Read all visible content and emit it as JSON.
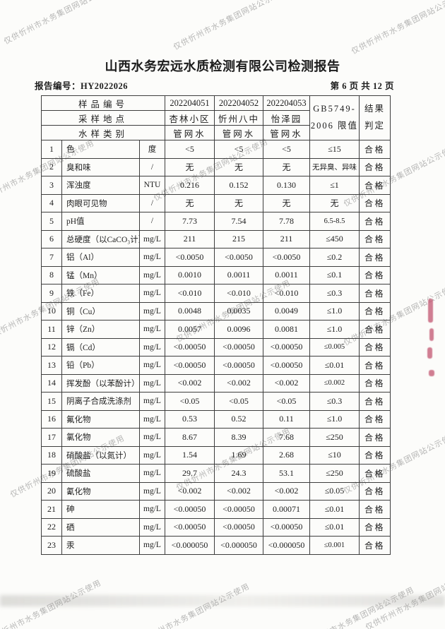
{
  "header": {
    "title": "山西水务宏远水质检测有限公司检测报告",
    "report_label": "报告编号：",
    "report_no": "HY2022026",
    "page_info": "第 6 页 共 12 页"
  },
  "table": {
    "header": {
      "sample_id_label": "样品编号",
      "location_label": "采样地点",
      "type_label": "水样类别",
      "sample_ids": [
        "202204051",
        "202204052",
        "202204053"
      ],
      "locations": [
        "杏林小区",
        "忻州八中",
        "怡泽园"
      ],
      "types": [
        "管网水",
        "管网水",
        "管网水"
      ],
      "limit_line1": "GB5749-",
      "limit_line2": "2006 限值",
      "result_line1": "结果",
      "result_line2": "判定"
    },
    "rows": [
      {
        "no": "1",
        "param": "色",
        "unit": "度",
        "values": [
          "<5",
          "<5",
          "<5"
        ],
        "limit": "≤15",
        "result": "合格"
      },
      {
        "no": "2",
        "param": "臭和味",
        "unit": "/",
        "values": [
          "无",
          "无",
          "无"
        ],
        "limit": "无异臭、异味",
        "result": "合格"
      },
      {
        "no": "3",
        "param": "浑浊度",
        "unit": "NTU",
        "values": [
          "0.216",
          "0.152",
          "0.130"
        ],
        "limit": "≤1",
        "result": "合格"
      },
      {
        "no": "4",
        "param": "肉眼可见物",
        "unit": "/",
        "values": [
          "无",
          "无",
          "无"
        ],
        "limit": "无",
        "result": "合格"
      },
      {
        "no": "5",
        "param": "pH值",
        "unit": "/",
        "values": [
          "7.73",
          "7.54",
          "7.78"
        ],
        "limit": "6.5-8.5",
        "result": "合格"
      },
      {
        "no": "6",
        "param": "总硬度（以CaCO₃计）",
        "unit": "mg/L",
        "values": [
          "211",
          "215",
          "211"
        ],
        "limit": "≤450",
        "result": "合格"
      },
      {
        "no": "7",
        "param": "铝（Al）",
        "unit": "mg/L",
        "values": [
          "<0.0050",
          "<0.0050",
          "<0.0050"
        ],
        "limit": "≤0.2",
        "result": "合格"
      },
      {
        "no": "8",
        "param": "锰（Mn）",
        "unit": "mg/L",
        "values": [
          "0.0010",
          "0.0011",
          "0.0011"
        ],
        "limit": "≤0.1",
        "result": "合格"
      },
      {
        "no": "9",
        "param": "铁（Fe）",
        "unit": "mg/L",
        "values": [
          "<0.010",
          "<0.010",
          "<0.010"
        ],
        "limit": "≤0.3",
        "result": "合格"
      },
      {
        "no": "10",
        "param": "铜（Cu）",
        "unit": "mg/L",
        "values": [
          "0.0048",
          "0.0035",
          "0.0049"
        ],
        "limit": "≤1.0",
        "result": "合格"
      },
      {
        "no": "11",
        "param": "锌（Zn）",
        "unit": "mg/L",
        "values": [
          "0.0057",
          "0.0096",
          "0.0081"
        ],
        "limit": "≤1.0",
        "result": "合格"
      },
      {
        "no": "12",
        "param": "镉（Cd）",
        "unit": "mg/L",
        "values": [
          "<0.00050",
          "<0.00050",
          "<0.00050"
        ],
        "limit": "≤0.005",
        "result": "合格"
      },
      {
        "no": "13",
        "param": "铅（Pb）",
        "unit": "mg/L",
        "values": [
          "<0.00050",
          "<0.00050",
          "<0.00050"
        ],
        "limit": "≤0.01",
        "result": "合格"
      },
      {
        "no": "14",
        "param": "挥发酚（以苯酚计）",
        "unit": "mg/L",
        "values": [
          "<0.002",
          "<0.002",
          "<0.002"
        ],
        "limit": "≤0.002",
        "result": "合格"
      },
      {
        "no": "15",
        "param": "阴离子合成洗涤剂",
        "unit": "mg/L",
        "values": [
          "<0.05",
          "<0.05",
          "<0.05"
        ],
        "limit": "≤0.3",
        "result": "合格"
      },
      {
        "no": "16",
        "param": "氟化物",
        "unit": "mg/L",
        "values": [
          "0.53",
          "0.52",
          "0.11"
        ],
        "limit": "≤1.0",
        "result": "合格"
      },
      {
        "no": "17",
        "param": "氯化物",
        "unit": "mg/L",
        "values": [
          "8.67",
          "8.39",
          "7.68"
        ],
        "limit": "≤250",
        "result": "合格"
      },
      {
        "no": "18",
        "param": "硝酸盐（以氮计）",
        "unit": "mg/L",
        "values": [
          "1.54",
          "1.69",
          "2.68"
        ],
        "limit": "≤10",
        "result": "合格"
      },
      {
        "no": "19",
        "param": "硫酸盐",
        "unit": "mg/L",
        "values": [
          "29.7",
          "24.3",
          "53.1"
        ],
        "limit": "≤250",
        "result": "合格"
      },
      {
        "no": "20",
        "param": "氰化物",
        "unit": "mg/L",
        "values": [
          "<0.002",
          "<0.002",
          "<0.002"
        ],
        "limit": "≤0.05",
        "result": "合格"
      },
      {
        "no": "21",
        "param": "砷",
        "unit": "mg/L",
        "values": [
          "<0.00050",
          "<0.00050",
          "0.00071"
        ],
        "limit": "≤0.01",
        "result": "合格"
      },
      {
        "no": "22",
        "param": "硒",
        "unit": "mg/L",
        "values": [
          "<0.00050",
          "<0.00050",
          "<0.00050"
        ],
        "limit": "≤0.01",
        "result": "合格"
      },
      {
        "no": "23",
        "param": "汞",
        "unit": "mg/L",
        "values": [
          "<0.000050",
          "<0.000050",
          "<0.000050"
        ],
        "limit": "≤0.001",
        "result": "合格"
      }
    ]
  },
  "watermark": {
    "text": "仅供忻州市水务集团网站公示使用",
    "color": "#7d7d7d"
  },
  "stamp": {
    "color": "#c25570"
  }
}
